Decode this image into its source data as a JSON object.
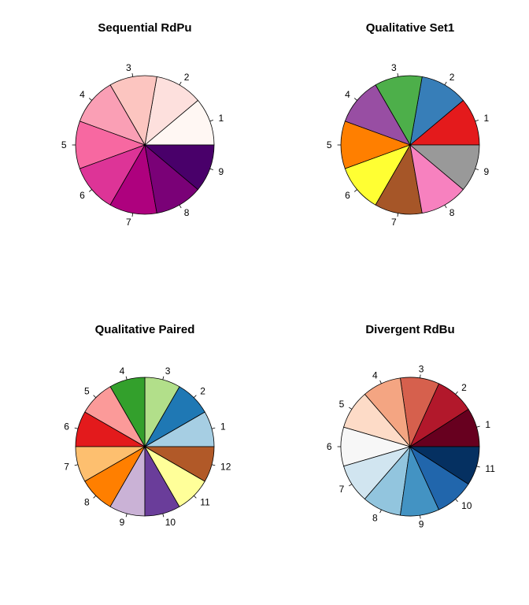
{
  "chart_data": [
    {
      "type": "pie",
      "title": "Sequential RdPu",
      "categories": [
        "1",
        "2",
        "3",
        "4",
        "5",
        "6",
        "7",
        "8",
        "9"
      ],
      "values": [
        1,
        1,
        1,
        1,
        1,
        1,
        1,
        1,
        1
      ],
      "colors": [
        "#FFF7F3",
        "#FDE0DD",
        "#FCC5C0",
        "#FA9FB5",
        "#F768A1",
        "#DD3497",
        "#AE017E",
        "#7A0177",
        "#49006A"
      ],
      "start_angle_deg": 0,
      "direction": "counterclockwise"
    },
    {
      "type": "pie",
      "title": "Qualitative Set1",
      "categories": [
        "1",
        "2",
        "3",
        "4",
        "5",
        "6",
        "7",
        "8",
        "9"
      ],
      "values": [
        1,
        1,
        1,
        1,
        1,
        1,
        1,
        1,
        1
      ],
      "colors": [
        "#E41A1C",
        "#377EB8",
        "#4DAF4A",
        "#984EA3",
        "#FF7F00",
        "#FFFF33",
        "#A65628",
        "#F781BF",
        "#999999"
      ],
      "start_angle_deg": 0,
      "direction": "counterclockwise"
    },
    {
      "type": "pie",
      "title": "Qualitative Paired",
      "categories": [
        "1",
        "2",
        "3",
        "4",
        "5",
        "6",
        "7",
        "8",
        "9",
        "10",
        "11",
        "12"
      ],
      "values": [
        1,
        1,
        1,
        1,
        1,
        1,
        1,
        1,
        1,
        1,
        1,
        1
      ],
      "colors": [
        "#A6CEE3",
        "#1F78B4",
        "#B2DF8A",
        "#33A02C",
        "#FB9A99",
        "#E31A1C",
        "#FDBF6F",
        "#FF7F00",
        "#CAB2D6",
        "#6A3D9A",
        "#FFFF99",
        "#B15928"
      ],
      "start_angle_deg": 0,
      "direction": "counterclockwise"
    },
    {
      "type": "pie",
      "title": "Divergent RdBu",
      "categories": [
        "1",
        "2",
        "3",
        "4",
        "5",
        "6",
        "7",
        "8",
        "9",
        "10",
        "11"
      ],
      "values": [
        1,
        1,
        1,
        1,
        1,
        1,
        1,
        1,
        1,
        1,
        1
      ],
      "colors": [
        "#67001F",
        "#B2182B",
        "#D6604D",
        "#F4A582",
        "#FDDBC7",
        "#F7F7F7",
        "#D1E5F0",
        "#92C5DE",
        "#4393C3",
        "#2166AC",
        "#053061"
      ],
      "start_angle_deg": 0,
      "direction": "counterclockwise"
    }
  ]
}
